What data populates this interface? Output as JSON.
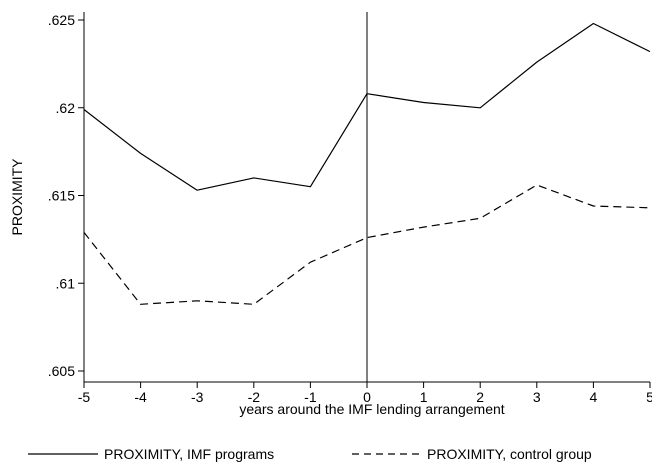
{
  "chart_data": {
    "type": "line",
    "x": [
      -5,
      -4,
      -3,
      -2,
      -1,
      0,
      1,
      2,
      3,
      4,
      5
    ],
    "xlabel": "years around the IMF lending arrangement",
    "ylabel": "PROXIMITY",
    "xlim": [
      -5,
      5
    ],
    "ylim": [
      0.605,
      0.625
    ],
    "xticks": [
      -5,
      -4,
      -3,
      -2,
      -1,
      0,
      1,
      2,
      3,
      4,
      5
    ],
    "yticks": [
      0.605,
      0.61,
      0.615,
      0.62,
      0.625
    ],
    "ytick_labels": [
      ".605",
      ".61",
      ".615",
      ".62",
      ".625"
    ],
    "grid": false,
    "vertical_reference_line": 0,
    "legend_position": "bottom",
    "series": [
      {
        "name": "PROXIMITY, IMF programs",
        "style": "solid",
        "color": "#000000",
        "values": [
          0.6199,
          0.6174,
          0.6153,
          0.616,
          0.6155,
          0.6208,
          0.6203,
          0.62,
          0.6226,
          0.6248,
          0.6232
        ]
      },
      {
        "name": "PROXIMITY, control group",
        "style": "dashed",
        "color": "#000000",
        "values": [
          0.6129,
          0.6088,
          0.609,
          0.6088,
          0.6112,
          0.6126,
          0.6132,
          0.6137,
          0.6156,
          0.6144,
          0.6143
        ]
      }
    ]
  }
}
